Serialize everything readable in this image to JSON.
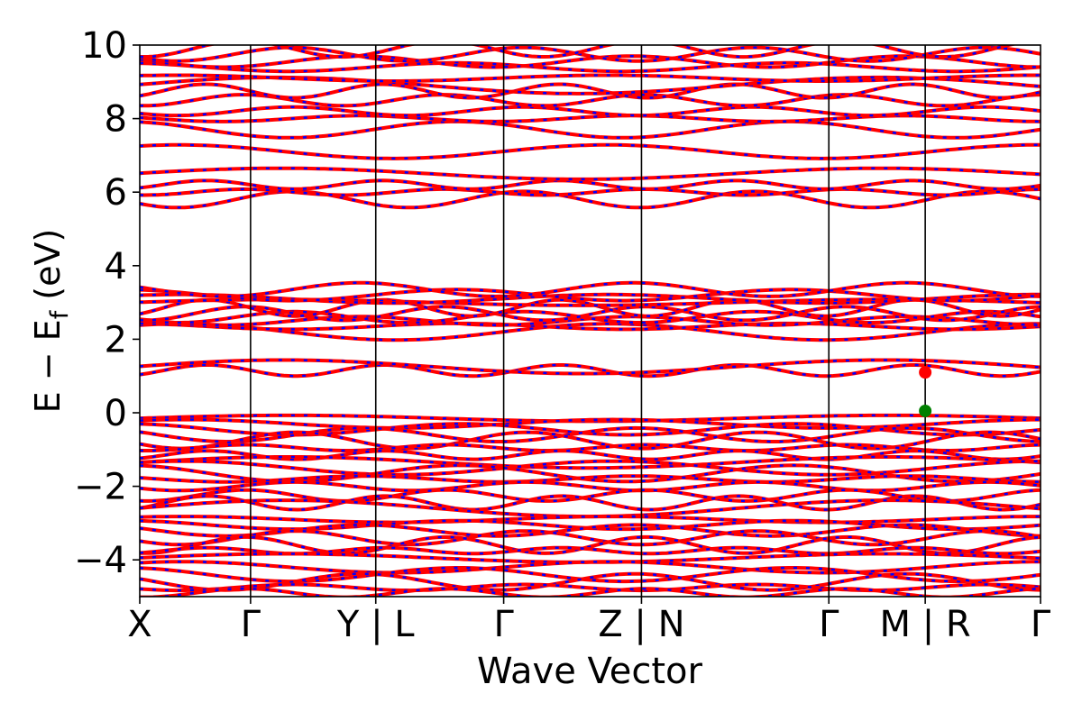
{
  "chart_data": {
    "type": "line",
    "title": "",
    "xlabel": "Wave Vector",
    "ylabel": "E − E_f (eV)",
    "ylabel_parts": {
      "main": "E − E",
      "subscript": "f",
      "unit": " (eV)"
    },
    "ylim": [
      -5,
      10
    ],
    "yticks": [
      -4,
      -2,
      0,
      2,
      4,
      6,
      8,
      10
    ],
    "ytick_labels": [
      "−4",
      "−2",
      "0",
      "2",
      "4",
      "6",
      "8",
      "10"
    ],
    "grid": false,
    "legend": "none",
    "kpath_labels": [
      "X",
      "Γ",
      "Y | L",
      "Γ",
      "Z | N",
      "Γ",
      "M | R",
      "Γ"
    ],
    "kpath_positions": [
      0,
      0.123,
      0.262,
      0.404,
      0.557,
      0.765,
      0.872,
      1.0
    ],
    "series": [
      {
        "color": "#ff0000",
        "style": "solid",
        "role": "bands"
      },
      {
        "color": "#0000ff",
        "style": "dashed",
        "role": "bands"
      }
    ],
    "band_edge_markers": [
      {
        "label_ref": "M | R",
        "k": 0.872,
        "energy": 1.1,
        "color": "#ff0000",
        "kind": "CBM"
      },
      {
        "label_ref": "M | R",
        "k": 0.872,
        "energy": 0.05,
        "color": "#008000",
        "kind": "VBM"
      }
    ],
    "band_levels_conduction": [
      1.15,
      1.25,
      2.2,
      2.35,
      2.5,
      2.6,
      2.7,
      2.85,
      3.0,
      3.1,
      3.2,
      3.35,
      5.8,
      6.0,
      6.2,
      6.5,
      7.1,
      7.7,
      8.0,
      8.2,
      8.5,
      8.75,
      8.9,
      9.1,
      9.4,
      9.55,
      9.75,
      9.9
    ],
    "band_levels_valence": [
      -0.15,
      -0.3,
      -0.45,
      -0.6,
      -0.75,
      -0.95,
      -1.15,
      -1.35,
      -1.5,
      -1.65,
      -1.8,
      -2.0,
      -2.25,
      -2.45,
      -2.6,
      -2.9,
      -3.05,
      -3.2,
      -3.4,
      -3.6,
      -3.75,
      -3.95,
      -4.2,
      -4.4,
      -4.6,
      -4.75,
      -4.9
    ]
  }
}
